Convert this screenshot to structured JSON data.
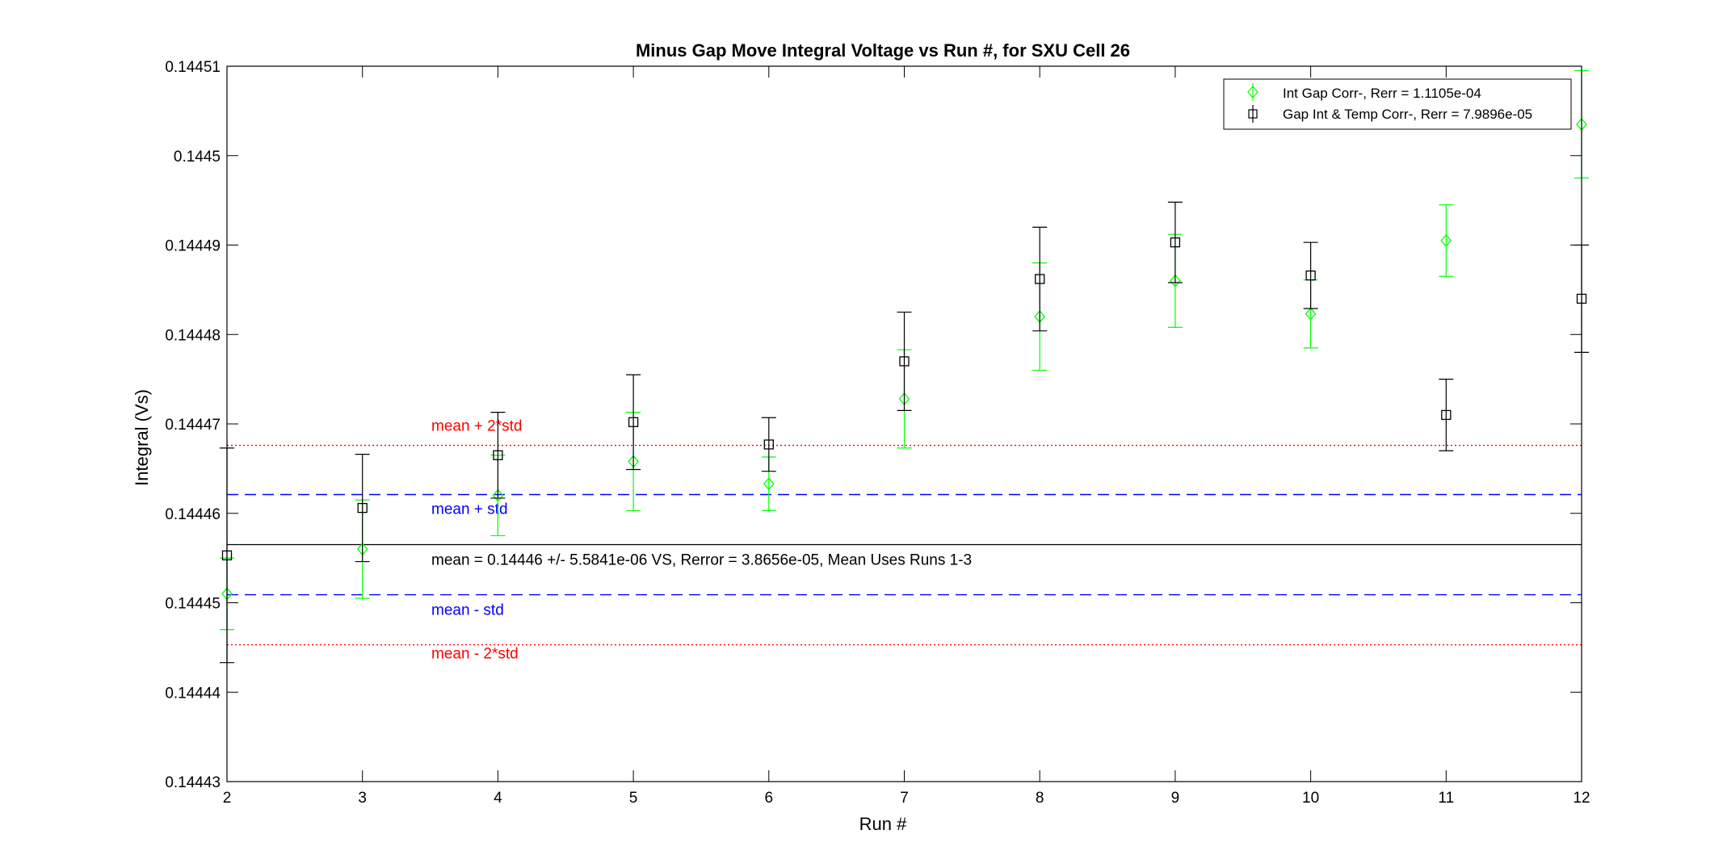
{
  "chart_data": {
    "type": "scatter",
    "title": "Minus Gap Move Integral Voltage vs Run #, for SXU Cell 26",
    "xlabel": "Run #",
    "ylabel": "Integral (Vs)",
    "xlim": [
      2,
      12
    ],
    "ylim": [
      0.14443,
      0.14451
    ],
    "xticks": [
      "2",
      "3",
      "4",
      "5",
      "6",
      "7",
      "8",
      "9",
      "10",
      "11",
      "12"
    ],
    "yticks": [
      "0.14443",
      "0.14444",
      "0.14445",
      "0.14446",
      "0.14447",
      "0.14448",
      "0.14449",
      "0.1445",
      "0.14451"
    ],
    "grid": false,
    "legend_position": "top-right",
    "series": [
      {
        "name": "Int Gap Corr-, Rerr = 1.1105e-04",
        "color": "#00ff00",
        "marker": "diamond",
        "x": [
          2,
          3,
          4,
          5,
          6,
          7,
          8,
          9,
          10,
          11,
          12
        ],
        "y": [
          0.144451,
          0.144456,
          0.144462,
          0.1444658,
          0.1444633,
          0.1444728,
          0.144482,
          0.144486,
          0.1444823,
          0.1444905,
          0.1445035
        ],
        "err": [
          4e-06,
          5.5e-06,
          4.5e-06,
          5.5e-06,
          3e-06,
          5.5e-06,
          6e-06,
          5.2e-06,
          3.8e-06,
          4e-06,
          6e-06
        ]
      },
      {
        "name": "Gap Int & Temp Corr-, Rerr = 7.9896e-05",
        "color": "#000000",
        "marker": "square",
        "x": [
          2,
          3,
          4,
          5,
          6,
          7,
          8,
          9,
          10,
          11,
          12
        ],
        "y": [
          0.1444553,
          0.1444606,
          0.1444665,
          0.1444702,
          0.1444677,
          0.144477,
          0.1444862,
          0.1444903,
          0.1444866,
          0.144471,
          0.144484
        ],
        "err": [
          1.2e-05,
          6e-06,
          4.8e-06,
          5.3e-06,
          3e-06,
          5.5e-06,
          5.8e-06,
          4.5e-06,
          3.7e-06,
          4e-06,
          6e-06
        ]
      }
    ],
    "reference_lines": [
      {
        "y": 0.1444676,
        "color": "#ff0000",
        "style": "dotted",
        "label": "mean + 2*std"
      },
      {
        "y": 0.1444621,
        "color": "#0000ff",
        "style": "dashed",
        "label": "mean + std"
      },
      {
        "y": 0.1444565,
        "color": "#000000",
        "style": "solid",
        "label": "mean = 0.14446 +/- 5.5841e-06 VS, Rerror = 3.8656e-05, Mean Uses Runs 1-3"
      },
      {
        "y": 0.1444509,
        "color": "#0000ff",
        "style": "dashed",
        "label": "mean - std"
      },
      {
        "y": 0.1444453,
        "color": "#ff0000",
        "style": "dotted",
        "label": "mean - 2*std"
      }
    ]
  }
}
